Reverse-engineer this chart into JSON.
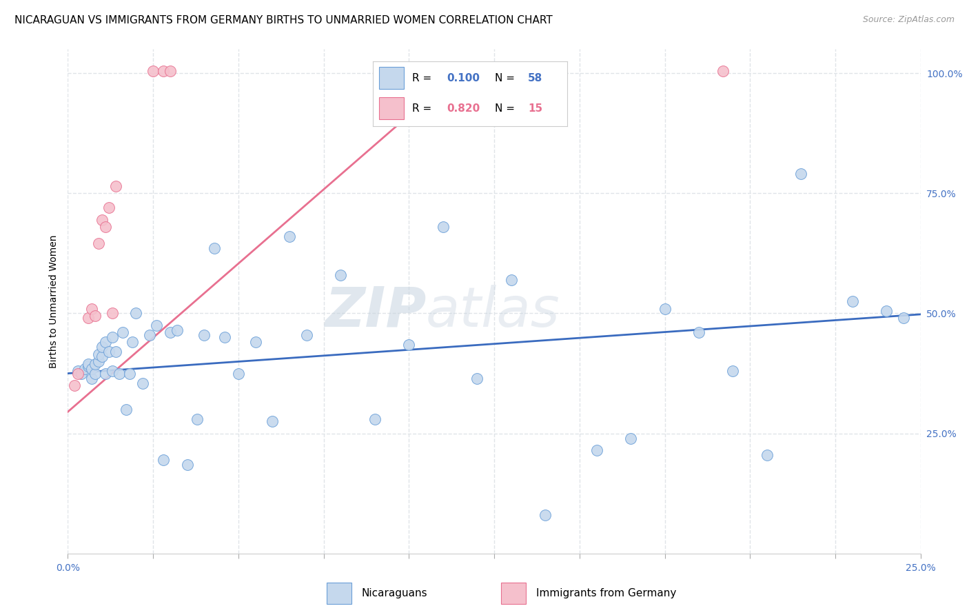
{
  "title": "NICARAGUAN VS IMMIGRANTS FROM GERMANY BIRTHS TO UNMARRIED WOMEN CORRELATION CHART",
  "source": "Source: ZipAtlas.com",
  "ylabel": "Births to Unmarried Women",
  "xlim": [
    0.0,
    0.25
  ],
  "ylim": [
    0.0,
    1.05
  ],
  "xtick_vals": [
    0.0,
    0.025,
    0.05,
    0.075,
    0.1,
    0.125,
    0.15,
    0.175,
    0.2,
    0.225,
    0.25
  ],
  "xtick_label_vals": [
    0.0,
    0.25
  ],
  "xtick_label_texts": [
    "0.0%",
    "25.0%"
  ],
  "ytick_vals": [
    0.25,
    0.5,
    0.75,
    1.0
  ],
  "ytick_labels": [
    "25.0%",
    "50.0%",
    "75.0%",
    "100.0%"
  ],
  "scatter_nicaraguan_x": [
    0.003,
    0.004,
    0.005,
    0.006,
    0.006,
    0.007,
    0.007,
    0.008,
    0.008,
    0.009,
    0.009,
    0.01,
    0.01,
    0.011,
    0.011,
    0.012,
    0.013,
    0.013,
    0.014,
    0.015,
    0.016,
    0.017,
    0.018,
    0.019,
    0.02,
    0.022,
    0.024,
    0.026,
    0.028,
    0.03,
    0.032,
    0.035,
    0.038,
    0.04,
    0.043,
    0.046,
    0.05,
    0.055,
    0.06,
    0.065,
    0.07,
    0.08,
    0.09,
    0.1,
    0.11,
    0.12,
    0.13,
    0.14,
    0.155,
    0.165,
    0.175,
    0.185,
    0.195,
    0.205,
    0.215,
    0.23,
    0.24,
    0.245
  ],
  "scatter_nicaraguan_y": [
    0.38,
    0.375,
    0.385,
    0.39,
    0.395,
    0.365,
    0.385,
    0.375,
    0.395,
    0.4,
    0.415,
    0.41,
    0.43,
    0.375,
    0.44,
    0.42,
    0.38,
    0.45,
    0.42,
    0.375,
    0.46,
    0.3,
    0.375,
    0.44,
    0.5,
    0.355,
    0.455,
    0.475,
    0.195,
    0.46,
    0.465,
    0.185,
    0.28,
    0.455,
    0.635,
    0.45,
    0.375,
    0.44,
    0.275,
    0.66,
    0.455,
    0.58,
    0.28,
    0.435,
    0.68,
    0.365,
    0.57,
    0.08,
    0.215,
    0.24,
    0.51,
    0.46,
    0.38,
    0.205,
    0.79,
    0.525,
    0.505,
    0.49
  ],
  "scatter_germany_x": [
    0.002,
    0.003,
    0.006,
    0.007,
    0.008,
    0.009,
    0.01,
    0.011,
    0.012,
    0.013,
    0.014,
    0.025,
    0.028,
    0.03,
    0.192
  ],
  "scatter_germany_y": [
    0.35,
    0.375,
    0.49,
    0.51,
    0.495,
    0.645,
    0.695,
    0.68,
    0.72,
    0.5,
    0.765,
    1.005,
    1.005,
    1.005,
    1.005
  ],
  "blue_line_x": [
    0.0,
    0.25
  ],
  "blue_line_y": [
    0.375,
    0.498
  ],
  "pink_line_x": [
    0.0,
    0.115
  ],
  "pink_line_y": [
    0.295,
    1.005
  ],
  "scatter_color_blue": "#c5d8ed",
  "scatter_edgecolor_blue": "#6a9fd8",
  "scatter_color_pink": "#f5c0cc",
  "scatter_edgecolor_pink": "#e87090",
  "line_color_blue": "#3a6bbf",
  "line_color_pink": "#e87090",
  "grid_color": "#e0e4e8",
  "bg_color": "#ffffff",
  "text_blue": "#4472c4",
  "text_pink": "#e87090",
  "watermark_zip": "ZIP",
  "watermark_atlas": "atlas",
  "title_fontsize": 11,
  "source_fontsize": 9,
  "ylabel_fontsize": 10,
  "tick_fontsize": 10,
  "legend_fontsize": 11
}
